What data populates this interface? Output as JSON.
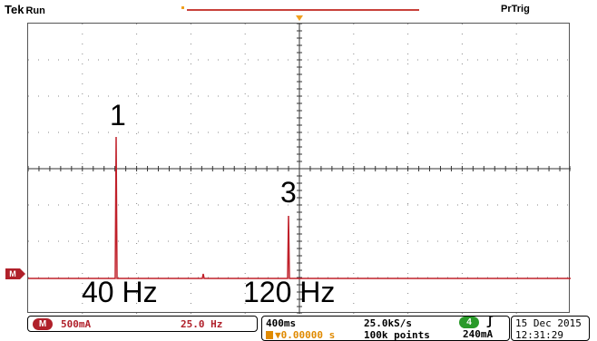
{
  "header": {
    "brand": "Tek",
    "state": "Run",
    "trigger_status": "PrTrig"
  },
  "plot": {
    "peaks": [
      {
        "label": "1",
        "freq_label": "40 Hz"
      },
      {
        "label": "3",
        "freq_label": "120 Hz"
      }
    ],
    "trace_color": "#c0202a"
  },
  "math_readout": {
    "channel": "M",
    "scale": "500mA",
    "span": "25.0 Hz"
  },
  "timebase": {
    "time_per_div": "400ms",
    "trigger_position": "▼0.00000 s",
    "sample_rate": "25.0kS/s",
    "record_length": "100k points"
  },
  "trigger": {
    "source": "4",
    "slope": "ʃ",
    "level": "240mA"
  },
  "clock": {
    "date": "15 Dec  2015",
    "time": "12:31:29"
  },
  "colors": {
    "math": "#b0202a",
    "ch4": "#2a9a2a",
    "orange": "#e08a00"
  }
}
